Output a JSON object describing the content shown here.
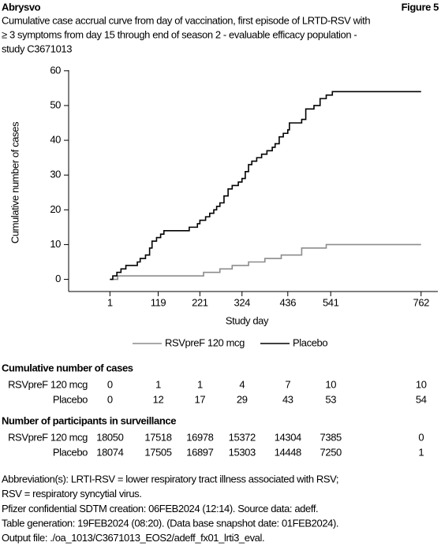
{
  "header": {
    "product": "Abrysvo",
    "figure": "Figure 5"
  },
  "chart_data": {
    "type": "step",
    "title": [
      "Cumulative case accrual curve from day of vaccination, first episode of LRTD-RSV with",
      "≥ 3 symptoms from day 15 through end of season 2 - evaluable efficacy population -",
      "study C3671013"
    ],
    "x_label": "Study day",
    "y_label": "Cumulative number of cases",
    "xlim": [
      -100,
      803
    ],
    "ylim": [
      -3.5,
      62
    ],
    "xticks": [
      1,
      119,
      221,
      324,
      436,
      541,
      762
    ],
    "yticks": [
      0,
      10,
      20,
      30,
      40,
      50,
      60
    ],
    "series": [
      {
        "name": "RSVpreF 120 mcg",
        "color": "#8c8c8c",
        "x": [
          1,
          20,
          230,
          270,
          300,
          340,
          380,
          420,
          470,
          530,
          762
        ],
        "values": [
          0,
          1,
          2,
          3,
          4,
          5,
          6,
          7,
          9,
          10,
          10
        ]
      },
      {
        "name": "Placebo",
        "color": "#000000",
        "x": [
          1,
          8,
          18,
          28,
          40,
          68,
          75,
          88,
          98,
          104,
          115,
          125,
          133,
          195,
          215,
          221,
          235,
          245,
          255,
          262,
          270,
          280,
          290,
          300,
          315,
          324,
          332,
          340,
          348,
          360,
          372,
          385,
          398,
          405,
          415,
          425,
          436,
          440,
          470,
          480,
          500,
          515,
          530,
          545,
          762
        ],
        "values": [
          0,
          1,
          2,
          3,
          4,
          5,
          6,
          7,
          9,
          11,
          12,
          13,
          14,
          15,
          16,
          17,
          18,
          19,
          20,
          21,
          22,
          24,
          26,
          27,
          28,
          29,
          31,
          33,
          34,
          35,
          36,
          37,
          38,
          39,
          41,
          42,
          43,
          45,
          46,
          49,
          50,
          52,
          53,
          54,
          54
        ]
      }
    ]
  },
  "tables": [
    {
      "title": "Cumulative number of cases",
      "rows": [
        {
          "label": "RSVpreF 120 mcg",
          "values": [
            0,
            1,
            1,
            4,
            7,
            10,
            10
          ]
        },
        {
          "label": "Placebo",
          "values": [
            0,
            12,
            17,
            29,
            43,
            53,
            54
          ]
        }
      ]
    },
    {
      "title": "Number of participants in surveillance",
      "rows": [
        {
          "label": "RSVpreF 120 mcg",
          "values": [
            18050,
            17518,
            16978,
            15372,
            14304,
            7385,
            0
          ]
        },
        {
          "label": "Placebo",
          "values": [
            18074,
            17505,
            16897,
            15303,
            14448,
            7250,
            1
          ]
        }
      ]
    }
  ],
  "footnotes": [
    "Abbreviation(s): LRTI-RSV = lower respiratory tract illness associated with RSV;",
    "RSV = respiratory syncytial virus.",
    "Pfizer confidential SDTM creation: 06FEB2024 (12:14). Source data: adeff.",
    "Table generation: 19FEB2024 (08:20). (Data base snapshot date: 01FEB2024).",
    "Output file: ./oa_1013/C3671013_EOS2/adeff_fx01_lrti3_eval."
  ]
}
